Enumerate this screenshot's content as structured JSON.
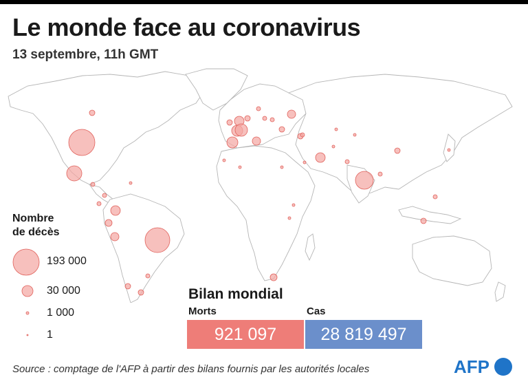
{
  "header": {
    "title": "Le monde face au coronavirus",
    "subtitle": "13 septembre, 11h GMT"
  },
  "legend": {
    "title_line1": "Nombre",
    "title_line2": "de décès",
    "items": [
      {
        "label": "193 000",
        "value": 193000
      },
      {
        "label": "30 000",
        "value": 30000
      },
      {
        "label": "1 000",
        "value": 1000
      },
      {
        "label": "1",
        "value": 1
      }
    ]
  },
  "bilan": {
    "title": "Bilan mondial",
    "morts_label": "Morts",
    "cas_label": "Cas",
    "morts_value": "921 097",
    "cas_value": "28 819 497"
  },
  "source": "Source : comptage de l'AFP à partir des bilans fournis par les autorités locales",
  "logo": "AFP",
  "colors": {
    "bubble_fill": "#f4a7a3",
    "bubble_stroke": "#e0605a",
    "morts_box": "#ee7d78",
    "cas_box": "#6b8fcb",
    "logo_blue": "#1f74c8"
  }
}
